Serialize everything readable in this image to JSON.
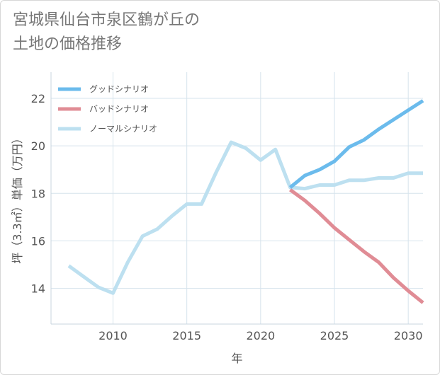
{
  "title": {
    "line1": "宮城県仙台市泉区鶴が丘の",
    "line2": "土地の価格推移"
  },
  "chart_data": {
    "type": "line",
    "xlabel": "年",
    "ylabel": "坪（3.3㎡）単価（万円）",
    "xlim": [
      2005.8,
      2031
    ],
    "ylim": [
      12.5,
      23.1
    ],
    "x_ticks": [
      "2010",
      "2015",
      "2020",
      "2025",
      "2030"
    ],
    "y_ticks": [
      "14",
      "16",
      "18",
      "20",
      "22"
    ],
    "grid": true,
    "legend_position": "top-left",
    "series": [
      {
        "name": "グッドシナリオ",
        "color": "#6bbbec",
        "x": [
          2022,
          2023,
          2024,
          2025,
          2026,
          2027,
          2028,
          2029,
          2030,
          2031
        ],
        "y": [
          18.25,
          18.75,
          19.0,
          19.35,
          19.95,
          20.25,
          20.7,
          21.1,
          21.5,
          21.9
        ]
      },
      {
        "name": "バッドシナリオ",
        "color": "#e08c95",
        "x": [
          2022,
          2023,
          2024,
          2025,
          2026,
          2027,
          2028,
          2029,
          2030,
          2031
        ],
        "y": [
          18.15,
          17.7,
          17.15,
          16.55,
          16.05,
          15.55,
          15.1,
          14.45,
          13.9,
          13.4
        ]
      },
      {
        "name": "ノーマルシナリオ",
        "color": "#bde0f0",
        "x": [
          2007,
          2008,
          2009,
          2010,
          2011,
          2012,
          2013,
          2014,
          2015,
          2016,
          2017,
          2018,
          2019,
          2020,
          2021,
          2022,
          2023,
          2024,
          2025,
          2026,
          2027,
          2028,
          2029,
          2030,
          2031
        ],
        "y": [
          14.95,
          14.5,
          14.05,
          13.8,
          15.1,
          16.2,
          16.5,
          17.05,
          17.55,
          17.55,
          18.9,
          20.15,
          19.9,
          19.4,
          19.85,
          18.25,
          18.2,
          18.35,
          18.35,
          18.55,
          18.55,
          18.65,
          18.65,
          18.85,
          18.85
        ]
      }
    ]
  }
}
